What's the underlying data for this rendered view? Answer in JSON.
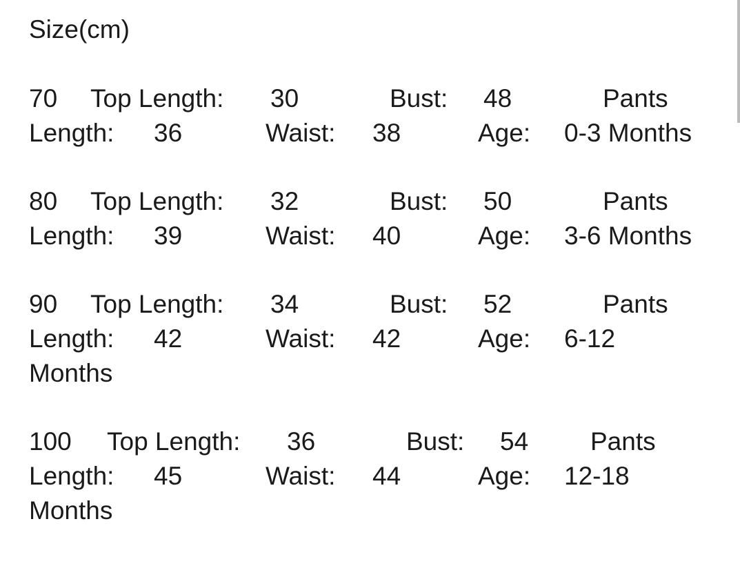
{
  "title": "Size(cm)",
  "labels": {
    "top_length": "Top Length:",
    "bust": "Bust:",
    "pants": "Pants",
    "length": "Length:",
    "waist": "Waist:",
    "age": "Age:"
  },
  "sizes": [
    {
      "size": "70",
      "top_length": "30",
      "bust": "48",
      "pants_length": "36",
      "waist": "38",
      "age": [
        "0-3 Months"
      ]
    },
    {
      "size": "80",
      "top_length": "32",
      "bust": "50",
      "pants_length": "39",
      "waist": "40",
      "age": [
        "3-6 Months"
      ]
    },
    {
      "size": "90",
      "top_length": "34",
      "bust": "52",
      "pants_length": "42",
      "waist": "42",
      "age": [
        "6-12",
        "Months"
      ]
    },
    {
      "size": "100",
      "top_length": "36",
      "bust": "54",
      "pants_length": "45",
      "waist": "44",
      "age": [
        "12-18",
        "Months"
      ]
    }
  ],
  "colors": {
    "text": "#1a1a1a",
    "scrollbar": "#bbbbbb"
  }
}
